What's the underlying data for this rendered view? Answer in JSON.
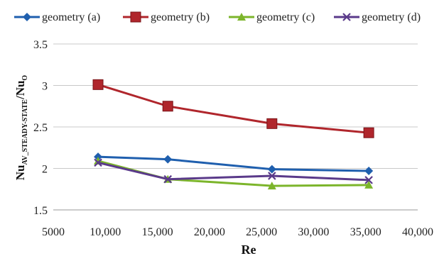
{
  "chart_data": {
    "type": "line",
    "xlabel": "Re",
    "ylabel_main": "Nu",
    "ylabel_sub": "AV_STEADY-STATE",
    "ylabel_sep": "/Nu",
    "ylabel_sub2": "O",
    "xlim": [
      5000,
      40000
    ],
    "ylim": [
      1.5,
      3.5
    ],
    "xticks": [
      5000,
      10000,
      15000,
      20000,
      25000,
      30000,
      35000,
      40000
    ],
    "xtick_labels": [
      "5000",
      "10,000",
      "15,000",
      "20,000",
      "25,000",
      "30,000",
      "35,000",
      "40,000"
    ],
    "yticks": [
      1.5,
      2,
      2.5,
      3,
      3.5
    ],
    "ytick_labels": [
      "1.5",
      "2",
      "2.5",
      "3",
      "3.5"
    ],
    "grid": "horizontal",
    "legend_position": "top",
    "series": [
      {
        "name": "geometry (a)",
        "color": "#1f5fae",
        "marker": "diamond",
        "x": [
          9300,
          16000,
          26000,
          35300
        ],
        "y": [
          2.14,
          2.11,
          1.99,
          1.97
        ]
      },
      {
        "name": "geometry (b)",
        "color": "#b0262c",
        "marker": "square",
        "x": [
          9300,
          16000,
          26000,
          35300
        ],
        "y": [
          3.01,
          2.75,
          2.54,
          2.43
        ]
      },
      {
        "name": "geometry (c)",
        "color": "#7cb52b",
        "marker": "triangle",
        "x": [
          9300,
          16000,
          26000,
          35300
        ],
        "y": [
          2.09,
          1.87,
          1.79,
          1.8
        ]
      },
      {
        "name": "geometry (d)",
        "color": "#5a3a8a",
        "marker": "x",
        "x": [
          9300,
          16000,
          26000,
          35300
        ],
        "y": [
          2.07,
          1.87,
          1.91,
          1.86
        ]
      }
    ]
  }
}
